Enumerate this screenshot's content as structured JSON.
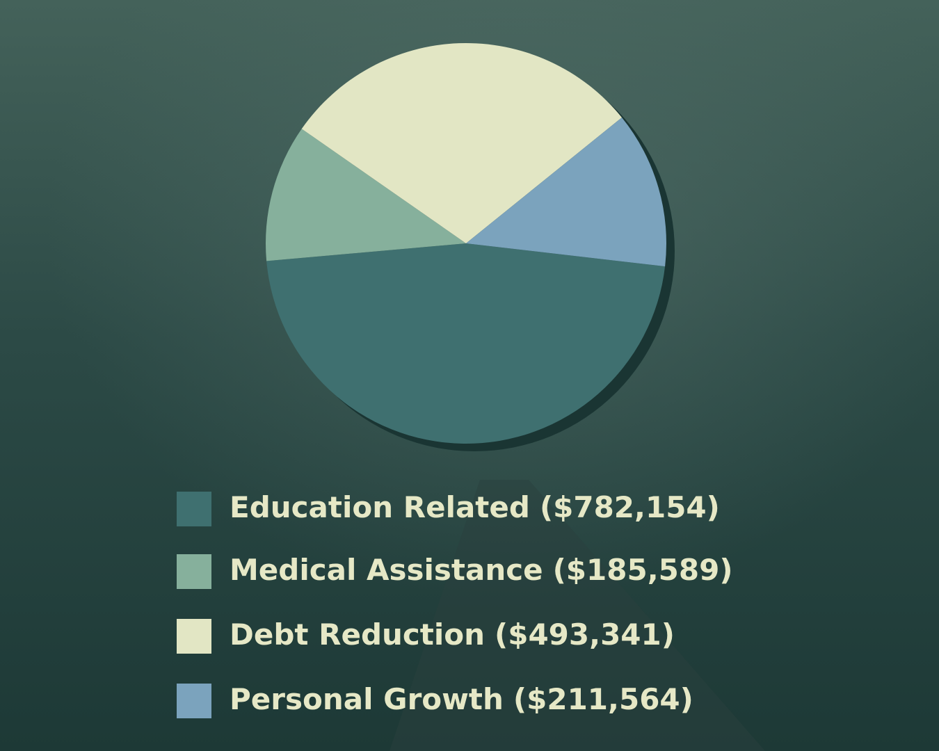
{
  "chart_data": {
    "type": "pie",
    "categories": [
      "Education Related",
      "Medical Assistance",
      "Debt Reduction",
      "Personal Growth"
    ],
    "values": [
      782154,
      185589,
      493341,
      211564
    ],
    "value_labels": [
      "($782,154)",
      "($185,589)",
      "($493,341)",
      "($211,564)"
    ],
    "colors": [
      "#3f7070",
      "#86b09c",
      "#e2e6c4",
      "#7ba3bd"
    ]
  }
}
